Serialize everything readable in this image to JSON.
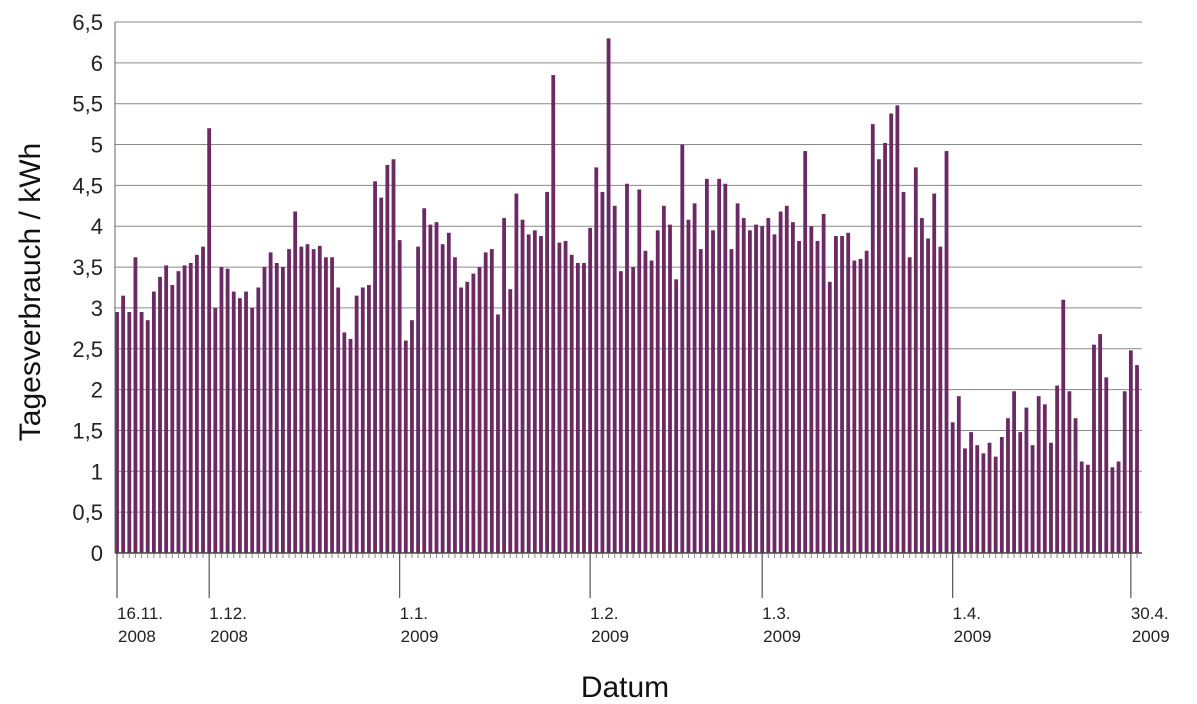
{
  "chart_data": {
    "type": "bar",
    "title": "",
    "xlabel": "Datum",
    "ylabel": "Tagesverbrauch / kWh",
    "ylim": [
      0,
      6.5
    ],
    "yticks": [
      "0",
      "0,5",
      "1",
      "1,5",
      "2",
      "2,5",
      "3",
      "3,5",
      "4",
      "4,5",
      "5",
      "5,5",
      "6",
      "6,5"
    ],
    "grid": true,
    "bar_color": "#6b2a63",
    "x_ticks": [
      {
        "day_index": 0,
        "line1": "16.11.",
        "line2": "2008"
      },
      {
        "day_index": 15,
        "line1": "1.12.",
        "line2": "2008"
      },
      {
        "day_index": 46,
        "line1": "1.1.",
        "line2": "2009"
      },
      {
        "day_index": 77,
        "line1": "1.2.",
        "line2": "2009"
      },
      {
        "day_index": 105,
        "line1": "1.3.",
        "line2": "2009"
      },
      {
        "day_index": 136,
        "line1": "1.4.",
        "line2": "2009"
      },
      {
        "day_index": 165,
        "line1": "30.4.",
        "line2": "2009"
      }
    ],
    "values": [
      2.95,
      3.15,
      2.95,
      3.62,
      2.95,
      2.85,
      3.2,
      3.38,
      3.52,
      3.28,
      3.45,
      3.52,
      3.55,
      3.65,
      3.75,
      5.2,
      3.0,
      3.5,
      3.48,
      3.2,
      3.12,
      3.2,
      3.0,
      3.25,
      3.5,
      3.68,
      3.55,
      3.5,
      3.72,
      4.18,
      3.75,
      3.78,
      3.72,
      3.76,
      3.62,
      3.62,
      3.25,
      2.7,
      2.62,
      3.15,
      3.25,
      3.28,
      4.55,
      4.35,
      4.75,
      4.82,
      3.83,
      2.6,
      2.85,
      3.75,
      4.22,
      4.02,
      4.05,
      3.78,
      3.92,
      3.62,
      3.25,
      3.32,
      3.42,
      3.5,
      3.68,
      3.72,
      2.92,
      4.1,
      3.23,
      4.4,
      4.08,
      3.9,
      3.95,
      3.88,
      4.42,
      5.85,
      3.8,
      3.82,
      3.65,
      3.55,
      3.55,
      3.98,
      4.72,
      4.42,
      6.3,
      4.25,
      3.45,
      4.52,
      3.5,
      4.45,
      3.7,
      3.58,
      3.95,
      4.25,
      4.02,
      3.35,
      5.0,
      4.08,
      4.28,
      3.72,
      4.58,
      3.95,
      4.58,
      4.52,
      3.72,
      4.28,
      4.1,
      3.95,
      4.02,
      4.0,
      4.1,
      3.9,
      4.18,
      4.25,
      4.05,
      3.82,
      4.92,
      4.0,
      3.82,
      4.15,
      3.32,
      3.88,
      3.88,
      3.92,
      3.58,
      3.6,
      3.7,
      5.25,
      4.82,
      5.02,
      5.38,
      5.48,
      4.42,
      3.62,
      4.72,
      4.1,
      3.85,
      4.4,
      3.75,
      4.92,
      1.6,
      1.92,
      1.28,
      1.48,
      1.32,
      1.22,
      1.35,
      1.18,
      1.42,
      1.65,
      1.98,
      1.48,
      1.78,
      1.32,
      1.92,
      1.82,
      1.35,
      2.05,
      3.1,
      1.98,
      1.65,
      1.12,
      1.08,
      2.55,
      2.68,
      2.15,
      1.05,
      1.12,
      1.98,
      2.48,
      2.3
    ]
  }
}
